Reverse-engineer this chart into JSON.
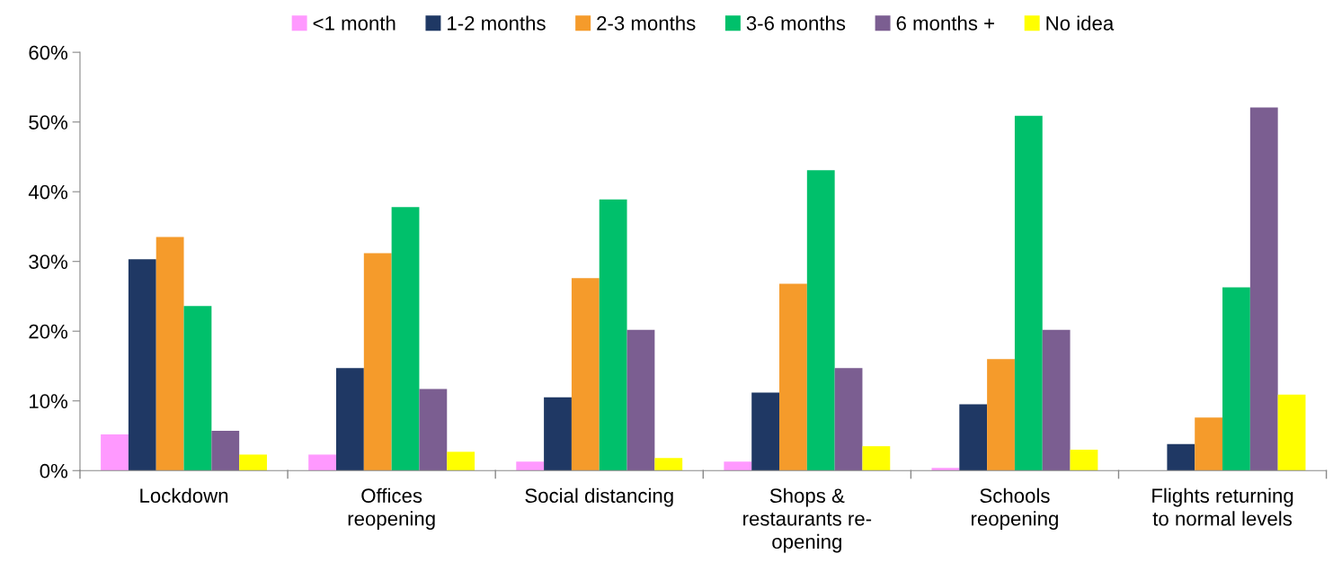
{
  "chart_data": {
    "type": "bar",
    "categories": [
      "Lockdown",
      "Offices\nreopening",
      "Social distancing",
      "Shops &\nrestaurants re-\nopening",
      "Schools\nreopening",
      "Flights returning\nto normal levels"
    ],
    "series": [
      {
        "name": "<1 month",
        "color": "#ff99ff",
        "values": [
          5.2,
          2.3,
          1.3,
          1.3,
          0.4,
          0
        ]
      },
      {
        "name": "1-2 months",
        "color": "#1f3864",
        "values": [
          30.3,
          14.7,
          10.5,
          11.2,
          9.5,
          3.8
        ]
      },
      {
        "name": "2-3 months",
        "color": "#f59b2b",
        "values": [
          33.5,
          31.2,
          27.6,
          26.8,
          16.0,
          7.6
        ]
      },
      {
        "name": "3-6 months",
        "color": "#00c06b",
        "values": [
          23.6,
          37.8,
          38.9,
          43.1,
          50.9,
          26.3
        ]
      },
      {
        "name": "6 months +",
        "color": "#7b5e91",
        "values": [
          5.7,
          11.7,
          20.2,
          14.7,
          20.2,
          52.1
        ]
      },
      {
        "name": "No idea",
        "color": "#ffff00",
        "values": [
          2.3,
          2.7,
          1.8,
          3.5,
          3.0,
          10.9
        ]
      }
    ],
    "ylim": [
      0,
      60
    ],
    "yticks": [
      {
        "value": 0,
        "label": "0%"
      },
      {
        "value": 10,
        "label": "10%"
      },
      {
        "value": 20,
        "label": "20%"
      },
      {
        "value": 30,
        "label": "30%"
      },
      {
        "value": 40,
        "label": "40%"
      },
      {
        "value": 50,
        "label": "50%"
      },
      {
        "value": 60,
        "label": "60%"
      }
    ],
    "grid": false,
    "legend": "top"
  }
}
